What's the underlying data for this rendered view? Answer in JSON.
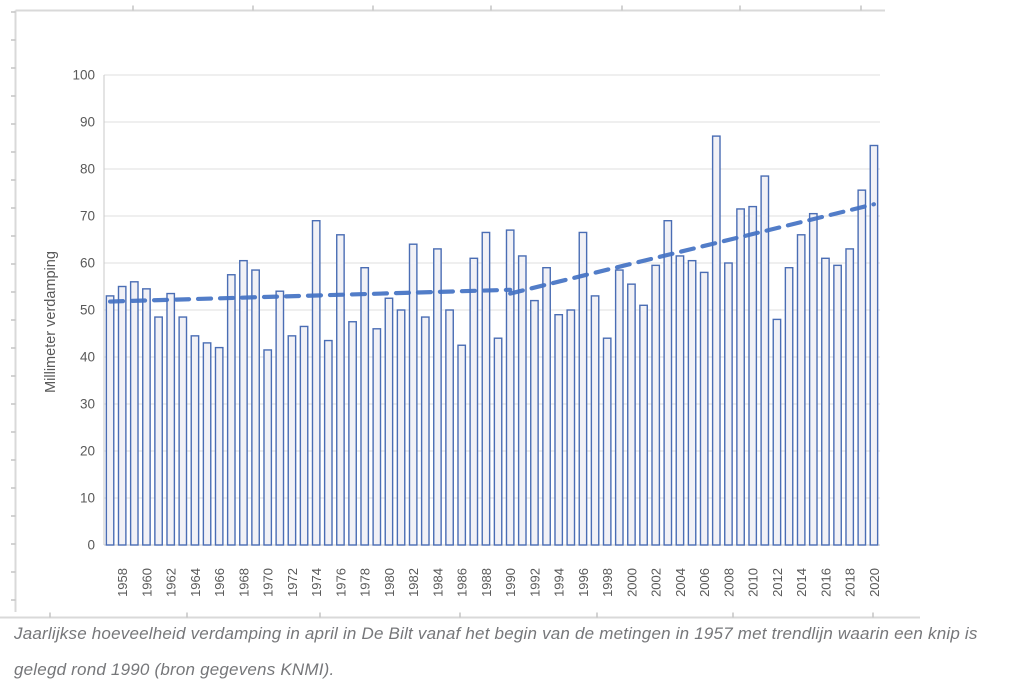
{
  "figure": {
    "caption_line1": "Jaarlijkse hoeveelheid verdamping in april in De Bilt vanaf het begin van de metingen in 1957 met trendlijn waarin een knip is",
    "caption_line2": "gelegd rond 1990 (bron gegevens KNMI)."
  },
  "y_axis": {
    "title": "Millimeter verdamping",
    "tick_labels": [
      "0",
      "10",
      "20",
      "30",
      "40",
      "50",
      "60",
      "70",
      "80",
      "90",
      "100"
    ]
  },
  "x_axis": {
    "tick_years": [
      "1958",
      "1960",
      "1962",
      "1964",
      "1966",
      "1968",
      "1970",
      "1972",
      "1974",
      "1976",
      "1978",
      "1980",
      "1982",
      "1984",
      "1986",
      "1988",
      "1990",
      "1992",
      "1994",
      "1996",
      "1998",
      "2000",
      "2002",
      "2004",
      "2006",
      "2008",
      "2010",
      "2012",
      "2014",
      "2016",
      "2018",
      "2020"
    ]
  },
  "colors": {
    "bar_fill": "#f1f1f6",
    "bar_border": "#4a6db4",
    "trend": "#4472c4",
    "grid": "#dfdfdf",
    "axis_line": "#c9c9c9",
    "axis_text": "#595959",
    "caption_text": "#76777a",
    "frame": "#d9d9d9"
  },
  "chart_data": {
    "type": "bar",
    "title": "",
    "xlabel": "",
    "ylabel": "Millimeter verdamping",
    "ylim": [
      0,
      100
    ],
    "grid": true,
    "legend": "none",
    "categories": [
      1957,
      1958,
      1959,
      1960,
      1961,
      1962,
      1963,
      1964,
      1965,
      1966,
      1967,
      1968,
      1969,
      1970,
      1971,
      1972,
      1973,
      1974,
      1975,
      1976,
      1977,
      1978,
      1979,
      1980,
      1981,
      1982,
      1983,
      1984,
      1985,
      1986,
      1987,
      1988,
      1989,
      1990,
      1991,
      1992,
      1993,
      1994,
      1995,
      1996,
      1997,
      1998,
      1999,
      2000,
      2001,
      2002,
      2003,
      2004,
      2005,
      2006,
      2007,
      2008,
      2009,
      2010,
      2011,
      2012,
      2013,
      2014,
      2015,
      2016,
      2017,
      2018,
      2019,
      2020
    ],
    "values": [
      53,
      55,
      56,
      54.5,
      48.5,
      53.5,
      48.5,
      44.5,
      43,
      42,
      57.5,
      60.5,
      58.5,
      41.5,
      54,
      44.5,
      46.5,
      69,
      43.5,
      66,
      47.5,
      59,
      46,
      52.5,
      50,
      64,
      48.5,
      63,
      50,
      42.5,
      61,
      66.5,
      44,
      67,
      61.5,
      52,
      59,
      49,
      50,
      66.5,
      53,
      44,
      58.5,
      55.5,
      51,
      59.5,
      69,
      61.5,
      60.5,
      58,
      87,
      60,
      71.5,
      72,
      78.5,
      48,
      59,
      66,
      70.5,
      61,
      59.5,
      63,
      75.5,
      85
    ],
    "trendlines": [
      {
        "name": "trend-before-knip",
        "style": "dashed",
        "year_start": 1957,
        "value_start": 51.8,
        "year_end": 1990,
        "value_end": 54.3
      },
      {
        "name": "trend-after-knip",
        "style": "dashed",
        "year_start": 1990,
        "value_start": 53.5,
        "year_end": 2020,
        "value_end": 72.5
      }
    ]
  }
}
